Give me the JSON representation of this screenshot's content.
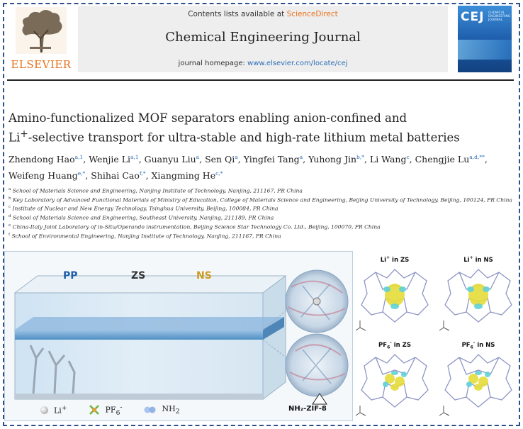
{
  "journal": {
    "publisher": "ELSEVIER",
    "contents_prefix": "Contents lists available at ",
    "contents_link": "ScienceDirect",
    "title": "Chemical Engineering Journal",
    "homepage_prefix": "journal homepage: ",
    "homepage_url": "www.elsevier.com/locate/cej",
    "cover_abbr": "CEJ",
    "cover_subtitle": "CHEMICAL ENGINEERING JOURNAL"
  },
  "article": {
    "title_line1": "Amino-functionalized MOF separators enabling anion-confined and",
    "title_line2_prefix": "Li",
    "title_line2_sup": "+",
    "title_line2_rest": "-selective transport for ultra-stable and high-rate lithium metal batteries",
    "authors": [
      {
        "name": "Zhendong Hao",
        "sup": "a,1"
      },
      {
        "name": "Wenjie Li",
        "sup": "a,1"
      },
      {
        "name": "Guanyu Liu",
        "sup": "a"
      },
      {
        "name": "Sen Qi",
        "sup": "a"
      },
      {
        "name": "Yingfei Tang",
        "sup": "a"
      },
      {
        "name": "Yuhong Jin",
        "sup": "b,*"
      },
      {
        "name": "Li Wang",
        "sup": "c"
      },
      {
        "name": "Chengjie Lu",
        "sup": "a,d,**"
      },
      {
        "name": "Weifeng Huang",
        "sup": "e,*"
      },
      {
        "name": "Shihai Cao",
        "sup": "f,*"
      },
      {
        "name": "Xiangming He",
        "sup": "c,*"
      }
    ],
    "affiliations": [
      {
        "key": "a",
        "text": "School of Materials Science and Engineering, Nanjing Institute of Technology, Nanjing, 211167, PR China"
      },
      {
        "key": "b",
        "text": "Key Laboratory of Advanced Functional Materials of Ministry of Education, College of Materials Science and Engineering, Beijing University of Technology, Beijing, 100124, PR China"
      },
      {
        "key": "c",
        "text": "Institute of Nuclear and New Energy Technology, Tsinghua University, Beijing, 100084, PR China"
      },
      {
        "key": "d",
        "text": "School of Materials Science and Engineering, Southeast University, Nanjing, 211189, PR China"
      },
      {
        "key": "e",
        "text": "China-Italy Joint Laboratory of in-Situ/Operando instrumentation, Beijing Science Star Technology Co. Ltd., Beijing, 100070, PR China"
      },
      {
        "key": "f",
        "text": "School of Environmental Engineering, Nanjing Institute of Technology, Nanjing, 211167, PR China"
      }
    ]
  },
  "graphical_abstract": {
    "separators": {
      "pp": "PP",
      "zs": "ZS",
      "ns": "NS"
    },
    "legend": {
      "li_label": "Li",
      "li_sup": "+",
      "pf6_label": "PF",
      "pf6_sub": "6",
      "pf6_sup": "-",
      "nh2_label": "NH",
      "nh2_sub": "2"
    },
    "mof_label": "NH₂-ZIF-8",
    "dft_panels": [
      {
        "prefix": "Li",
        "sup": "+",
        "sub": "",
        "suffix": " in ZS"
      },
      {
        "prefix": "Li",
        "sup": "+",
        "sub": "",
        "suffix": " in NS"
      },
      {
        "prefix": "PF",
        "sup": "-",
        "sub": "6",
        "suffix": " in ZS"
      },
      {
        "prefix": "PF",
        "sup": "-",
        "sub": "6",
        "suffix": " in NS"
      }
    ],
    "colors": {
      "pp": "#1f5fa8",
      "ns": "#d09a1c",
      "isosurface_yellow": "#e6dc3a",
      "isosurface_cyan": "#5fd2d8",
      "frame": "#2c4f8f"
    }
  }
}
